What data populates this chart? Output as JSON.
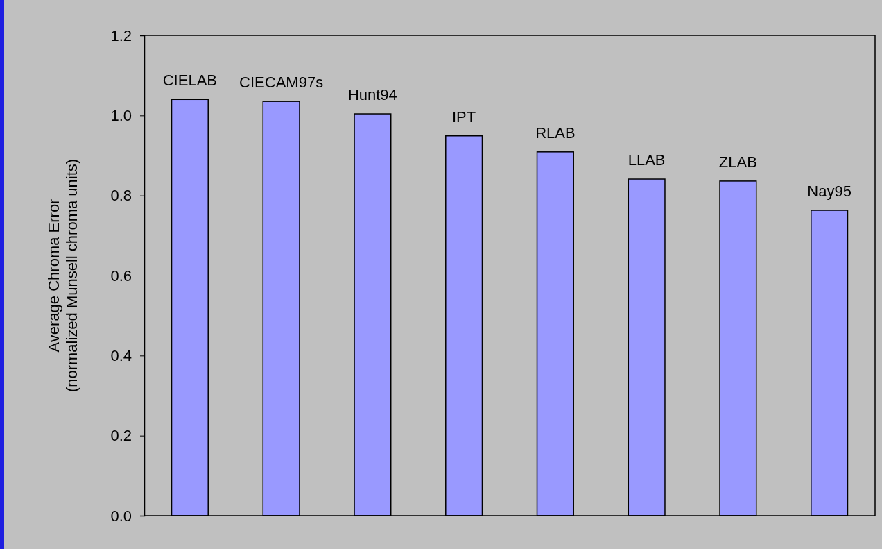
{
  "chart_data": {
    "type": "bar",
    "ylabel": "Average Chroma Error\n(normalized Munsell chroma units)",
    "categories": [
      "CIELAB",
      "CIECAM97s",
      "Hunt94",
      "IPT",
      "RLAB",
      "LLAB",
      "ZLAB",
      "Nay95"
    ],
    "values": [
      1.04,
      1.035,
      1.004,
      0.949,
      0.909,
      0.841,
      0.836,
      0.763
    ],
    "color": "#9999ff",
    "ylim": [
      0,
      1.2
    ],
    "yticks": [
      {
        "value": 0,
        "label": "0.0"
      },
      {
        "value": 0.2,
        "label": "0.2"
      },
      {
        "value": 0.4,
        "label": "0.4"
      },
      {
        "value": 0.6,
        "label": "0.6"
      },
      {
        "value": 0.8,
        "label": "0.8"
      },
      {
        "value": 1.0,
        "label": "1.0"
      },
      {
        "value": 1.2,
        "label": "1.2"
      }
    ],
    "grid": false
  }
}
